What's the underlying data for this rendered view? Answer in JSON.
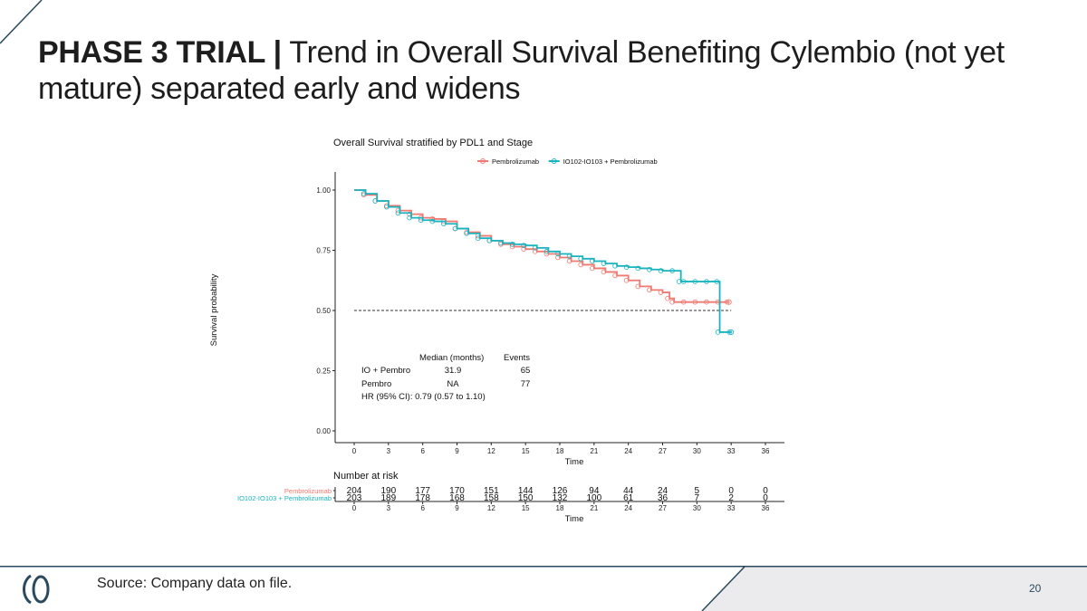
{
  "slide": {
    "title_bold": "PHASE 3 TRIAL |",
    "title_rest": " Trend in Overall Survival Benefiting Cylembio (not yet mature) separated early and widens",
    "source": "Source: Company data on file.",
    "page_number": "20",
    "colors": {
      "navy": "#2b4a5e",
      "footer_gray": "#ebebed",
      "pembro": "#f07a72",
      "combo": "#19b4c0"
    }
  },
  "chart_data": {
    "type": "line",
    "subtype": "kaplan-meier",
    "title": "Overall Survival stratified by PDL1 and Stage",
    "xlabel": "Time",
    "ylabel": "Survival probability",
    "xlim": [
      0,
      36
    ],
    "ylim": [
      0,
      1
    ],
    "x_ticks": [
      "0",
      "3",
      "6",
      "9",
      "12",
      "15",
      "18",
      "21",
      "24",
      "27",
      "30",
      "33",
      "36"
    ],
    "y_ticks": [
      "0.00",
      "0.25",
      "0.50",
      "0.75",
      "1.00"
    ],
    "median_reference": 0.5,
    "legend_position": "top",
    "series": [
      {
        "name": "Pembrolizumab",
        "color": "#f07a72",
        "x": [
          0,
          1.0,
          2.0,
          3.0,
          4.0,
          5.0,
          6.0,
          7.0,
          8.0,
          9.0,
          10.0,
          11.0,
          12.0,
          13.0,
          14.0,
          15.0,
          16.0,
          17.0,
          18.0,
          19.0,
          20.0,
          21.0,
          22.0,
          23.0,
          24.0,
          25.0,
          26.0,
          27.0,
          27.6,
          28.0,
          29.0,
          30.0,
          31.0,
          32.0,
          32.8
        ],
        "y": [
          1.0,
          0.98,
          0.955,
          0.935,
          0.915,
          0.9,
          0.885,
          0.88,
          0.87,
          0.84,
          0.825,
          0.81,
          0.79,
          0.775,
          0.765,
          0.755,
          0.745,
          0.735,
          0.72,
          0.705,
          0.69,
          0.675,
          0.66,
          0.645,
          0.625,
          0.6,
          0.585,
          0.575,
          0.55,
          0.535,
          0.535,
          0.535,
          0.535,
          0.535,
          0.535
        ]
      },
      {
        "name": "IO102-IO103 + Pembrolizumab",
        "color": "#19b4c0",
        "x": [
          0,
          1.0,
          2.0,
          3.0,
          4.0,
          5.0,
          6.0,
          7.0,
          8.0,
          9.0,
          10.0,
          11.0,
          12.0,
          13.0,
          14.0,
          15.0,
          16.0,
          17.0,
          18.0,
          19.0,
          20.0,
          21.0,
          22.0,
          23.0,
          24.0,
          25.0,
          26.0,
          27.0,
          28.0,
          28.6,
          29.0,
          30.0,
          31.0,
          31.9,
          32.0,
          33.0
        ],
        "y": [
          1.0,
          0.985,
          0.955,
          0.93,
          0.905,
          0.885,
          0.875,
          0.87,
          0.86,
          0.84,
          0.82,
          0.8,
          0.79,
          0.78,
          0.775,
          0.77,
          0.76,
          0.745,
          0.735,
          0.725,
          0.715,
          0.705,
          0.695,
          0.685,
          0.68,
          0.675,
          0.67,
          0.665,
          0.665,
          0.62,
          0.62,
          0.62,
          0.62,
          0.62,
          0.41,
          0.41
        ]
      }
    ],
    "annotation": {
      "header_median": "Median (months)",
      "header_events": "Events",
      "rows": [
        {
          "label": "IO + Pembro",
          "median": "31.9",
          "events": "65"
        },
        {
          "label": "Pembro",
          "median": "NA",
          "events": "77"
        }
      ],
      "hr": "HR (95% CI): 0.79 (0.57 to 1.10)"
    },
    "risk_table": {
      "title": "Number at risk",
      "xlabel": "Time",
      "times": [
        "0",
        "3",
        "6",
        "9",
        "12",
        "15",
        "18",
        "21",
        "24",
        "27",
        "30",
        "33",
        "36"
      ],
      "rows": [
        {
          "name": "Pembrolizumab",
          "color": "#f07a72",
          "counts": [
            "204",
            "190",
            "177",
            "170",
            "151",
            "144",
            "126",
            "94",
            "44",
            "24",
            "5",
            "0",
            "0"
          ]
        },
        {
          "name": "IO102-IO103 + Pembrolizumab",
          "color": "#19b4c0",
          "counts": [
            "203",
            "189",
            "178",
            "168",
            "158",
            "150",
            "132",
            "100",
            "61",
            "36",
            "7",
            "2",
            "0"
          ]
        }
      ]
    }
  }
}
